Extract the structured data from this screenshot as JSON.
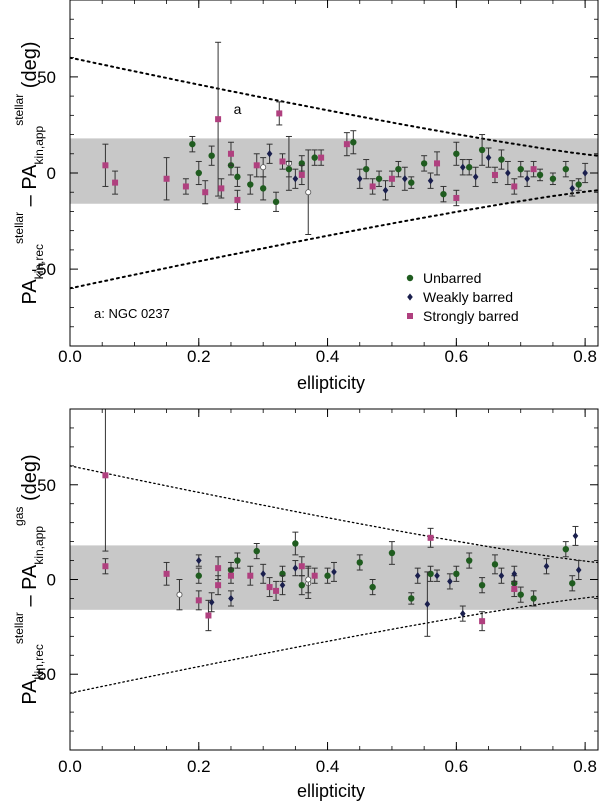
{
  "chart_data": [
    {
      "type": "scatter",
      "xlabel": "ellipticity",
      "ylabel_parts": {
        "main1": "PA",
        "sub1": "kin,rec",
        "sup1": "stellar",
        "dash": "–",
        "main2": "PA",
        "sub2": "kin,app",
        "sup2": "stellar",
        "unit": "(deg)"
      },
      "xlim": [
        0.0,
        0.82
      ],
      "ylim": [
        -90,
        90
      ],
      "xticks": [
        "0.0",
        "0.2",
        "0.4",
        "0.6",
        "0.8"
      ],
      "xtick_values": [
        0.0,
        0.2,
        0.4,
        0.6,
        0.8
      ],
      "yticks": [
        "50",
        "0",
        "-50"
      ],
      "ytick_values": [
        50,
        0,
        -50
      ],
      "band": {
        "low": -16,
        "high": 18
      },
      "envelope": {
        "upper_start": 60,
        "lower_start": -60,
        "upper_end": 9,
        "lower_end": -9
      },
      "annotation": {
        "label": "a",
        "x": 0.31,
        "y": 40
      },
      "note": "a: NGC 0237",
      "legend": {
        "placement": "bottom-right",
        "entries": [
          {
            "label": "Unbarred",
            "marker": "circle",
            "color": "#1f5c1f"
          },
          {
            "label": "Weakly barred",
            "marker": "diamond",
            "color": "#1a1f4d"
          },
          {
            "label": "Strongly barred",
            "marker": "square",
            "color": "#b0407f"
          }
        ]
      },
      "series": [
        {
          "name": "Unbarred",
          "marker": "circle",
          "color": "#1f5c1f",
          "points": [
            [
              0.19,
              15,
              4
            ],
            [
              0.2,
              0,
              6
            ],
            [
              0.22,
              9,
              5
            ],
            [
              0.25,
              4,
              5
            ],
            [
              0.26,
              -2,
              5
            ],
            [
              0.28,
              -6,
              5
            ],
            [
              0.3,
              -8,
              6
            ],
            [
              0.32,
              -15,
              5
            ],
            [
              0.34,
              2,
              4
            ],
            [
              0.36,
              5,
              4
            ],
            [
              0.38,
              8,
              4
            ],
            [
              0.44,
              16,
              6
            ],
            [
              0.46,
              2,
              5
            ],
            [
              0.48,
              -3,
              4
            ],
            [
              0.51,
              2,
              4
            ],
            [
              0.53,
              -5,
              3
            ],
            [
              0.55,
              5,
              4
            ],
            [
              0.58,
              -11,
              4
            ],
            [
              0.6,
              10,
              6
            ],
            [
              0.62,
              3,
              4
            ],
            [
              0.64,
              12,
              8
            ],
            [
              0.67,
              7,
              5
            ],
            [
              0.7,
              2,
              4
            ],
            [
              0.73,
              -1,
              3
            ],
            [
              0.75,
              -3,
              3
            ],
            [
              0.77,
              2,
              4
            ],
            [
              0.79,
              -6,
              3
            ]
          ]
        },
        {
          "name": "Weakly barred",
          "marker": "diamond",
          "color": "#1a1f4d",
          "points": [
            [
              0.31,
              10,
              5
            ],
            [
              0.35,
              -3,
              5
            ],
            [
              0.45,
              -3,
              5
            ],
            [
              0.49,
              -9,
              5
            ],
            [
              0.52,
              -3,
              6
            ],
            [
              0.56,
              -4,
              4
            ],
            [
              0.61,
              3,
              4
            ],
            [
              0.63,
              -2,
              5
            ],
            [
              0.65,
              8,
              5
            ],
            [
              0.68,
              0,
              6
            ],
            [
              0.71,
              -3,
              4
            ],
            [
              0.78,
              -8,
              4
            ],
            [
              0.8,
              0,
              5
            ]
          ]
        },
        {
          "name": "Strongly barred",
          "marker": "square",
          "color": "#b0407f",
          "points": [
            [
              0.055,
              4,
              11
            ],
            [
              0.07,
              -5,
              6
            ],
            [
              0.15,
              -3,
              11
            ],
            [
              0.18,
              -7,
              4
            ],
            [
              0.21,
              -10,
              6
            ],
            [
              0.23,
              28,
              40
            ],
            [
              0.235,
              -8,
              5
            ],
            [
              0.25,
              10,
              6
            ],
            [
              0.26,
              -14,
              5
            ],
            [
              0.29,
              4,
              6
            ],
            [
              0.325,
              31,
              6
            ],
            [
              0.33,
              6,
              4
            ],
            [
              0.36,
              -1,
              5
            ],
            [
              0.39,
              8,
              4
            ],
            [
              0.43,
              15,
              6
            ],
            [
              0.47,
              -7,
              4
            ],
            [
              0.5,
              -3,
              4
            ],
            [
              0.57,
              5,
              6
            ],
            [
              0.6,
              -13,
              4
            ],
            [
              0.66,
              -1,
              4
            ],
            [
              0.69,
              -7,
              4
            ],
            [
              0.72,
              2,
              4
            ]
          ]
        }
      ],
      "error_only": [
        [
          0.34,
          5,
          14
        ],
        [
          0.37,
          -10,
          22
        ],
        [
          0.3,
          3,
          5
        ]
      ]
    },
    {
      "type": "scatter",
      "xlabel": "ellipticity",
      "ylabel_parts": {
        "main1": "PA",
        "sub1": "kin,rec",
        "sup1": "stellar",
        "dash": "–",
        "main2": "PA",
        "sub2": "kin,app",
        "sup2": "gas",
        "unit": "(deg)"
      },
      "xlim": [
        0.0,
        0.82
      ],
      "ylim": [
        -90,
        90
      ],
      "xticks": [
        "0.0",
        "0.2",
        "0.4",
        "0.6",
        "0.8"
      ],
      "xtick_values": [
        0.0,
        0.2,
        0.4,
        0.6,
        0.8
      ],
      "yticks": [
        "50",
        "0",
        "-50"
      ],
      "ytick_values": [
        50,
        0,
        -50
      ],
      "band": {
        "low": -16,
        "high": 18
      },
      "envelope": {
        "upper_start": 60,
        "lower_start": -60,
        "upper_end": 9,
        "lower_end": -9
      },
      "series": [
        {
          "name": "Unbarred",
          "marker": "circle",
          "color": "#1f5c1f",
          "points": [
            [
              0.2,
              2,
              4
            ],
            [
              0.25,
              5,
              4
            ],
            [
              0.26,
              10,
              4
            ],
            [
              0.29,
              15,
              4
            ],
            [
              0.33,
              3,
              4
            ],
            [
              0.35,
              19,
              6
            ],
            [
              0.36,
              -3,
              5
            ],
            [
              0.4,
              2,
              4
            ],
            [
              0.45,
              9,
              4
            ],
            [
              0.47,
              -4,
              4
            ],
            [
              0.5,
              14,
              6
            ],
            [
              0.53,
              -10,
              3
            ],
            [
              0.56,
              3,
              4
            ],
            [
              0.6,
              3,
              4
            ],
            [
              0.62,
              10,
              4
            ],
            [
              0.64,
              -3,
              4
            ],
            [
              0.66,
              8,
              5
            ],
            [
              0.69,
              -2,
              4
            ],
            [
              0.7,
              -8,
              4
            ],
            [
              0.72,
              -10,
              4
            ],
            [
              0.77,
              16,
              4
            ],
            [
              0.78,
              -2,
              4
            ]
          ]
        },
        {
          "name": "Weakly barred",
          "marker": "diamond",
          "color": "#1a1f4d",
          "points": [
            [
              0.2,
              10,
              3
            ],
            [
              0.22,
              -12,
              5
            ],
            [
              0.25,
              -10,
              4
            ],
            [
              0.3,
              3,
              5
            ],
            [
              0.33,
              -3,
              5
            ],
            [
              0.35,
              6,
              4
            ],
            [
              0.41,
              4,
              5
            ],
            [
              0.54,
              2,
              4
            ],
            [
              0.555,
              -13,
              17
            ],
            [
              0.57,
              2,
              3
            ],
            [
              0.59,
              -1,
              4
            ],
            [
              0.61,
              -18,
              4
            ],
            [
              0.67,
              2,
              4
            ],
            [
              0.69,
              3,
              4
            ],
            [
              0.74,
              7,
              4
            ],
            [
              0.785,
              23,
              5
            ],
            [
              0.79,
              5,
              5
            ]
          ]
        },
        {
          "name": "Strongly barred",
          "marker": "square",
          "color": "#b0407f",
          "points": [
            [
              0.055,
              55,
              40
            ],
            [
              0.055,
              7,
              4
            ],
            [
              0.15,
              3,
              6
            ],
            [
              0.2,
              -11,
              5
            ],
            [
              0.215,
              -19,
              8
            ],
            [
              0.23,
              6,
              6
            ],
            [
              0.23,
              -3,
              5
            ],
            [
              0.25,
              2,
              4
            ],
            [
              0.28,
              2,
              5
            ],
            [
              0.31,
              -4,
              5
            ],
            [
              0.32,
              -6,
              5
            ],
            [
              0.36,
              7,
              5
            ],
            [
              0.38,
              2,
              4
            ],
            [
              0.56,
              22,
              5
            ],
            [
              0.64,
              -22,
              5
            ],
            [
              0.69,
              -5,
              4
            ]
          ]
        }
      ],
      "error_only": [
        [
          0.17,
          -8,
          8
        ],
        [
          0.37,
          -2,
          8
        ],
        [
          0.37,
          0,
          7
        ]
      ]
    }
  ]
}
